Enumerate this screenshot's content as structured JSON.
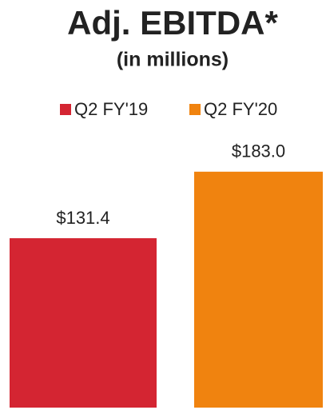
{
  "chart_data": {
    "type": "bar",
    "title": "Adj. EBITDA*",
    "subtitle": "(in millions)",
    "categories": [
      null
    ],
    "series": [
      {
        "name": "Q2 FY'19",
        "color": "#d42532",
        "values": [
          131.4
        ],
        "value_labels": [
          "$131.4"
        ]
      },
      {
        "name": "Q2 FY'20",
        "color": "#f0830f",
        "values": [
          183.0
        ],
        "value_labels": [
          "$183.0"
        ]
      }
    ]
  }
}
